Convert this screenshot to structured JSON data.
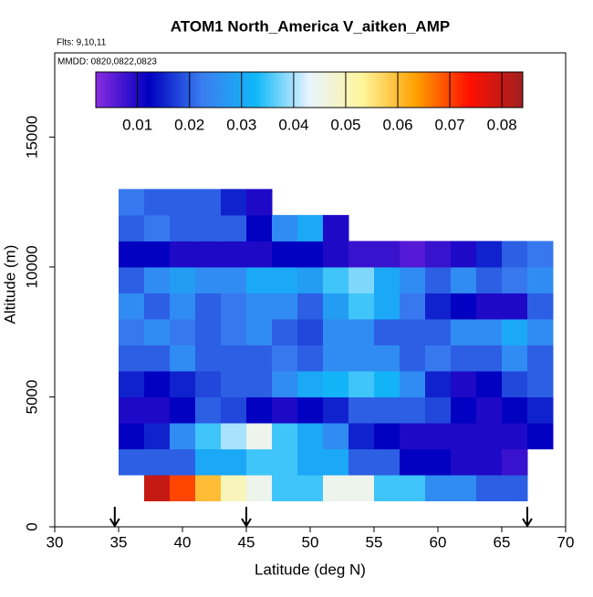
{
  "chart_data": {
    "type": "heatmap",
    "title": "ATOM1 North_America V_aitken_AMP",
    "annotations": [
      "Flts: 9,10,11",
      "MMDD: 0820,0822,0823"
    ],
    "x_label": "Latitude (deg N)",
    "y_label": "Altitude (m)",
    "xlim": [
      30,
      70
    ],
    "xticks": [
      30,
      35,
      40,
      45,
      50,
      55,
      60,
      65,
      70
    ],
    "ylim": [
      0,
      18240
    ],
    "yticks": [
      0,
      5000,
      10000,
      15000
    ],
    "xbins": [
      35,
      37,
      39,
      41,
      43,
      45,
      47,
      49,
      51,
      53,
      55,
      57,
      59,
      61,
      63,
      65,
      67,
      69
    ],
    "ybins": [
      1000,
      2000,
      3000,
      4000,
      5000,
      6000,
      7000,
      8000,
      9000,
      10000,
      11000,
      12000,
      13000
    ],
    "z": [
      [
        null,
        0.08,
        0.07,
        0.06,
        0.05,
        0.045,
        0.035,
        0.035,
        0.045,
        0.045,
        0.035,
        0.035,
        0.025,
        0.025,
        0.02,
        0.02,
        null
      ],
      [
        0.02,
        0.02,
        0.02,
        0.03,
        0.03,
        0.035,
        0.035,
        0.03,
        0.03,
        0.02,
        0.02,
        0.012,
        0.012,
        0.01,
        0.01,
        0.008,
        null
      ],
      [
        0.012,
        0.015,
        0.025,
        0.035,
        0.04,
        0.045,
        0.035,
        0.03,
        0.025,
        0.015,
        0.012,
        0.01,
        0.01,
        0.01,
        0.01,
        0.01,
        0.012
      ],
      [
        0.01,
        0.01,
        0.012,
        0.02,
        0.018,
        0.012,
        0.01,
        0.012,
        0.015,
        0.02,
        0.02,
        0.02,
        0.018,
        0.012,
        0.01,
        0.012,
        0.015
      ],
      [
        0.015,
        0.012,
        0.015,
        0.018,
        0.02,
        0.02,
        0.025,
        0.03,
        0.032,
        0.035,
        0.032,
        0.025,
        0.015,
        0.01,
        0.012,
        0.018,
        0.02
      ],
      [
        0.02,
        0.02,
        0.025,
        0.02,
        0.02,
        0.02,
        0.022,
        0.02,
        0.025,
        0.025,
        0.025,
        0.02,
        0.022,
        0.02,
        0.02,
        0.025,
        0.02
      ],
      [
        0.022,
        0.025,
        0.022,
        0.02,
        0.022,
        0.025,
        0.02,
        0.018,
        0.025,
        0.025,
        0.02,
        0.02,
        0.02,
        0.025,
        0.025,
        0.03,
        0.025
      ],
      [
        0.025,
        0.02,
        0.025,
        0.02,
        0.022,
        0.025,
        0.025,
        0.02,
        0.028,
        0.035,
        0.03,
        0.022,
        0.015,
        0.012,
        0.01,
        0.01,
        0.02
      ],
      [
        0.02,
        0.025,
        0.028,
        0.025,
        0.025,
        0.03,
        0.03,
        0.028,
        0.035,
        0.038,
        0.03,
        0.025,
        0.02,
        0.025,
        0.02,
        0.022,
        0.025
      ],
      [
        0.012,
        0.012,
        0.01,
        0.01,
        0.01,
        0.01,
        0.012,
        0.012,
        0.01,
        0.008,
        0.008,
        0.006,
        0.008,
        0.01,
        0.015,
        0.02,
        0.022
      ],
      [
        0.02,
        0.022,
        0.02,
        0.02,
        0.02,
        0.012,
        0.025,
        0.03,
        0.01,
        null,
        null,
        null,
        null,
        null,
        null,
        null,
        null
      ],
      [
        0.022,
        0.02,
        0.02,
        0.02,
        0.015,
        0.01,
        null,
        null,
        null,
        null,
        null,
        null,
        null,
        null,
        null,
        null,
        null
      ]
    ],
    "zlim": [
      0.002,
      0.084
    ],
    "colorbar_ticks": [
      0.01,
      0.02,
      0.03,
      0.04,
      0.05,
      0.06,
      0.07,
      0.08
    ],
    "colormap": [
      "#8a2be2",
      "#0000c0",
      "#3a7ef0",
      "#10b8f8",
      "#e8f4ff",
      "#fff59a",
      "#ffa000",
      "#ff1000",
      "#a02020"
    ],
    "arrows": [
      34.7,
      45,
      67
    ]
  }
}
